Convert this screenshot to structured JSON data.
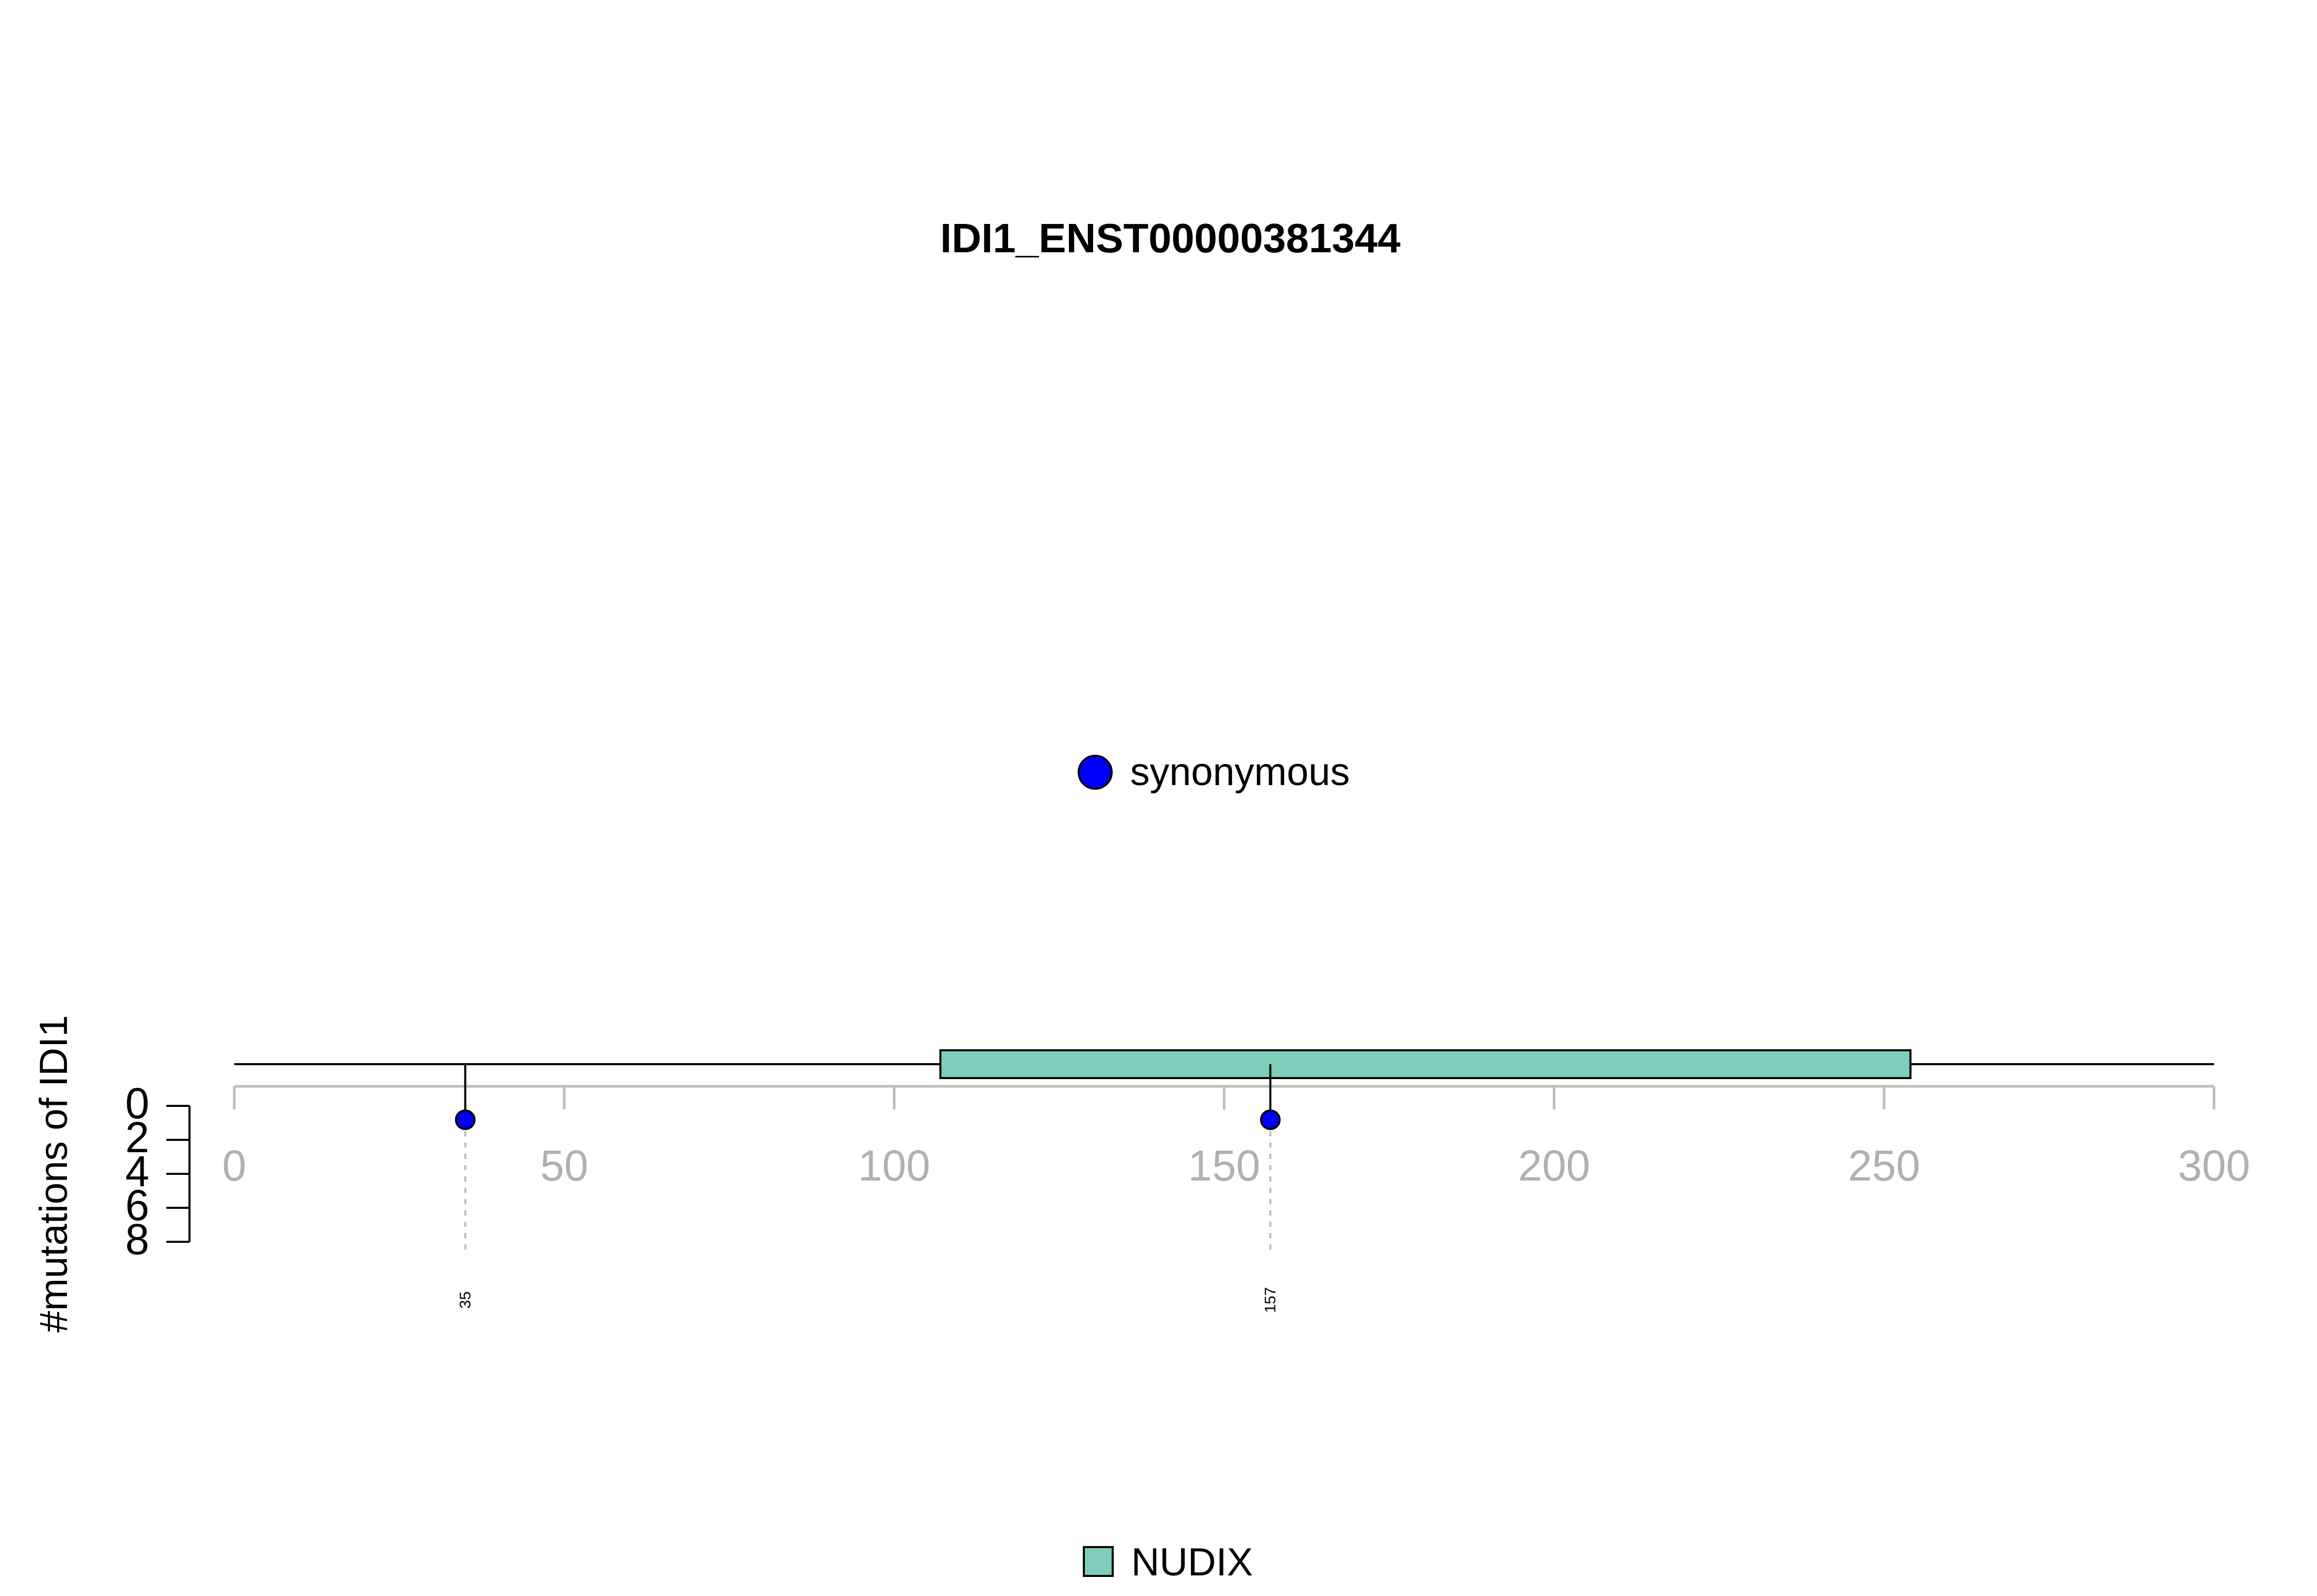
{
  "chart_data": {
    "type": "lollipop",
    "title": "IDI1_ENST00000381344",
    "ylabel": "#mutations of IDI1",
    "xlim": [
      0,
      300
    ],
    "x_ticks": [
      "0",
      "50",
      "100",
      "150",
      "200",
      "250",
      "300"
    ],
    "y_ticks": [
      "0",
      "2",
      "4",
      "6",
      "8"
    ],
    "ylim": [
      0,
      8
    ],
    "legend_mutation_label": "synonymous",
    "legend_domain_label": "NUDIX",
    "mutations": [
      {
        "position": 35,
        "label": "35",
        "count": 1,
        "type": "synonymous"
      },
      {
        "position": 157,
        "label": "157",
        "count": 1,
        "type": "synonymous"
      }
    ],
    "domains": [
      {
        "name": "NUDIX",
        "start": 107,
        "end": 254
      }
    ],
    "protein_length": 300
  },
  "colors": {
    "synonymous": "#0000ff",
    "domain": "#7fcdbb",
    "axis": "#bdbdbd",
    "tick_label": "#b0b0b0"
  }
}
